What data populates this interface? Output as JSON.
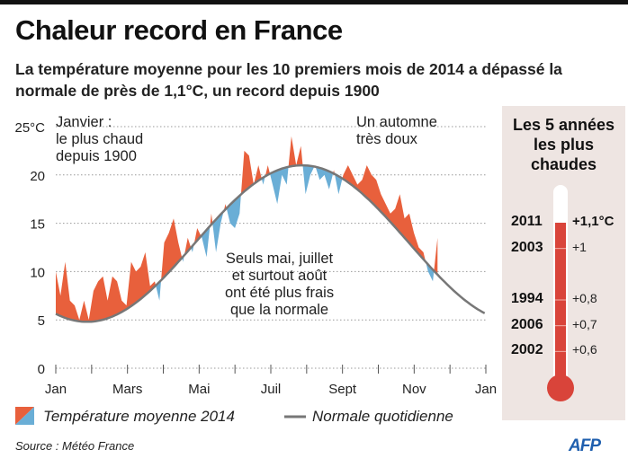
{
  "title": "Chaleur record en France",
  "subtitle": "La température moyenne pour les 10 premiers mois de 2014 a dépassé la normale de près de 1,1°C, un record depuis 1900",
  "annotations": {
    "january": "Janvier :\nle plus chaud\ndepuis 1900",
    "autumn": "Un automne\ntrès doux",
    "summer": "Seuls mai, juillet\net surtout août\nont été plus frais\nque la normale"
  },
  "legend": {
    "actual": "Température moyenne 2014",
    "normal": "Normale quotidienne"
  },
  "source": "Source : Météo France",
  "logo": "AFP",
  "colors": {
    "above": "#e8603c",
    "below": "#6aaed6",
    "normal": "#777777",
    "thermo": "#d9443a",
    "panel": "#eee5e2"
  },
  "chart_data": {
    "type": "area",
    "ylabel_unit": "25°C",
    "ylim": [
      0,
      25
    ],
    "yticks": [
      0,
      5,
      10,
      15,
      20,
      25
    ],
    "ytick_labels": [
      "0",
      "5",
      "10",
      "15",
      "20",
      "25°C"
    ],
    "xlim_day_of_year": [
      1,
      366
    ],
    "xtick_labels": [
      "Jan",
      "Mars",
      "Mai",
      "Juil",
      "Sept",
      "Nov",
      "Jan"
    ],
    "grid": "horizontal dotted",
    "normal": {
      "min": 4.8,
      "max": 21.0,
      "peak_day": 210
    },
    "series_2014": {
      "day": [
        1,
        5,
        9,
        13,
        17,
        21,
        25,
        29,
        33,
        37,
        41,
        45,
        49,
        53,
        57,
        61,
        65,
        69,
        73,
        77,
        81,
        85,
        89,
        93,
        97,
        101,
        105,
        109,
        113,
        117,
        121,
        125,
        129,
        133,
        137,
        141,
        145,
        149,
        153,
        157,
        161,
        165,
        169,
        173,
        177,
        181,
        185,
        189,
        193,
        197,
        201,
        205,
        209,
        213,
        217,
        221,
        225,
        229,
        233,
        237,
        241,
        245,
        249,
        253,
        257,
        261,
        265,
        269,
        273,
        277,
        281,
        285,
        289,
        293,
        297,
        301,
        305,
        309,
        313,
        317,
        321,
        325
      ],
      "temp": [
        10,
        7.5,
        11,
        7,
        6.5,
        5,
        7,
        5,
        8,
        9,
        9.5,
        7,
        9.5,
        9,
        7,
        6.5,
        11,
        10,
        10.5,
        12,
        8.5,
        9,
        7,
        13,
        14,
        15.5,
        13,
        11,
        13.5,
        12,
        14.5,
        13.5,
        11.5,
        16,
        12,
        15,
        17,
        15,
        14.5,
        16,
        22.5,
        22,
        19,
        21,
        19,
        21,
        19,
        17,
        20,
        19,
        24,
        21,
        23,
        18,
        20,
        21,
        19.5,
        20,
        18.5,
        20.5,
        18,
        20,
        21,
        20,
        19,
        19.5,
        21,
        20,
        19.5,
        18,
        17,
        16,
        16.5,
        18,
        15.5,
        16,
        14,
        12.5,
        12,
        10,
        9,
        13.5
      ]
    }
  },
  "thermometer": {
    "title": "Les 5 années les plus chaudes",
    "entries": [
      {
        "year": "2011",
        "anomaly": "+1,1°C",
        "value": 1.1
      },
      {
        "year": "2003",
        "anomaly": "+1",
        "value": 1.0
      },
      {
        "year": "1994",
        "anomaly": "+0,8",
        "value": 0.8
      },
      {
        "year": "2006",
        "anomaly": "+0,7",
        "value": 0.7
      },
      {
        "year": "2002",
        "anomaly": "+0,6",
        "value": 0.6
      }
    ]
  }
}
